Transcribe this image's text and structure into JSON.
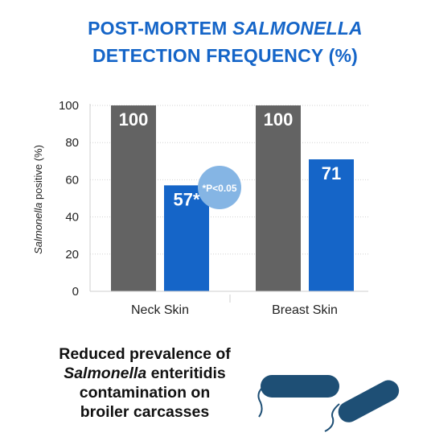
{
  "title": {
    "line1_prefix": "POST-MORTEM ",
    "line1_italic": "SALMONELLA",
    "line2": "DETECTION FREQUENCY (%)"
  },
  "chart_data": {
    "type": "bar",
    "categories": [
      "Neck Skin",
      "Breast Skin"
    ],
    "series": [
      {
        "values": [
          100,
          100
        ],
        "labels": [
          "100",
          "100"
        ],
        "color": "#636363"
      },
      {
        "values": [
          57,
          71
        ],
        "labels": [
          "57*",
          "71"
        ],
        "color": "#1565c8"
      }
    ],
    "ylabel_italic": "Salmonella",
    "ylabel_rest": " positive (%)",
    "ylim": [
      0,
      100
    ],
    "yticks": [
      0,
      20,
      40,
      60,
      80,
      100
    ],
    "grid": true,
    "annotation": {
      "text": "*P<0.05",
      "color": "#85b5e4"
    }
  },
  "caption": {
    "line1": "Reduced prevalence of",
    "line2_italic": "Salmonella",
    "line2_rest": " enteritidis",
    "line3": "contamination on",
    "line4": "broiler carcasses"
  },
  "colors": {
    "accent": "#1565c8",
    "bar_dark": "#636363",
    "badge": "#85b5e4",
    "bacteria": "#1e4f75"
  },
  "icons": {
    "bacteria": "bacteria-illustration"
  }
}
